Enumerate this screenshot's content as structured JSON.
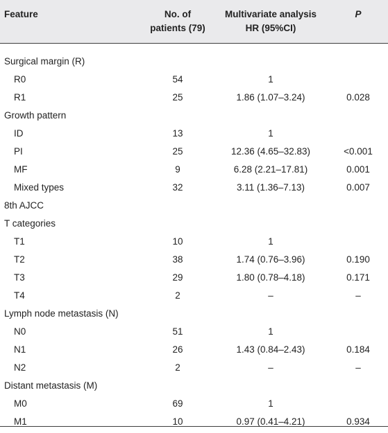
{
  "header": {
    "feature": "Feature",
    "patients_line1": "No. of",
    "patients_line2": "patients (79)",
    "hr_line1": "Multivariate analysis",
    "hr_line2": "HR (95%CI)",
    "p": "P"
  },
  "rows": [
    {
      "type": "group",
      "feature": "Surgical margin (R)",
      "n": "",
      "hr": "",
      "p": ""
    },
    {
      "type": "sub",
      "feature": "R0",
      "n": "54",
      "hr": "1",
      "p": ""
    },
    {
      "type": "sub",
      "feature": "R1",
      "n": "25",
      "hr": "1.86 (1.07–3.24)",
      "p": "0.028"
    },
    {
      "type": "group",
      "feature": "Growth pattern",
      "n": "",
      "hr": "",
      "p": ""
    },
    {
      "type": "sub",
      "feature": "ID",
      "n": "13",
      "hr": "1",
      "p": ""
    },
    {
      "type": "sub",
      "feature": "PI",
      "n": "25",
      "hr": "12.36 (4.65–32.83)",
      "p": "<0.001"
    },
    {
      "type": "sub",
      "feature": "MF",
      "n": "9",
      "hr": "6.28 (2.21–17.81)",
      "p": "0.001"
    },
    {
      "type": "sub",
      "feature": "Mixed types",
      "n": "32",
      "hr": "3.11 (1.36–7.13)",
      "p": "0.007"
    },
    {
      "type": "group",
      "feature": "8th AJCC",
      "n": "",
      "hr": "",
      "p": ""
    },
    {
      "type": "group",
      "feature": "T categories",
      "n": "",
      "hr": "",
      "p": ""
    },
    {
      "type": "sub",
      "feature": "T1",
      "n": "10",
      "hr": "1",
      "p": ""
    },
    {
      "type": "sub",
      "feature": "T2",
      "n": "38",
      "hr": "1.74 (0.76–3.96)",
      "p": "0.190"
    },
    {
      "type": "sub",
      "feature": "T3",
      "n": "29",
      "hr": "1.80 (0.78–4.18)",
      "p": "0.171"
    },
    {
      "type": "sub",
      "feature": "T4",
      "n": "2",
      "hr": "–",
      "p": "–"
    },
    {
      "type": "group",
      "feature": "Lymph node metastasis (N)",
      "n": "",
      "hr": "",
      "p": ""
    },
    {
      "type": "sub",
      "feature": "N0",
      "n": "51",
      "hr": "1",
      "p": ""
    },
    {
      "type": "sub",
      "feature": "N1",
      "n": "26",
      "hr": "1.43 (0.84–2.43)",
      "p": "0.184"
    },
    {
      "type": "sub",
      "feature": "N2",
      "n": "2",
      "hr": "–",
      "p": "–"
    },
    {
      "type": "group",
      "feature": "Distant metastasis (M)",
      "n": "",
      "hr": "",
      "p": ""
    },
    {
      "type": "sub",
      "feature": "M0",
      "n": "69",
      "hr": "1",
      "p": ""
    },
    {
      "type": "sub",
      "feature": "M1",
      "n": "10",
      "hr": "0.97 (0.41–4.21)",
      "p": "0.934"
    }
  ]
}
